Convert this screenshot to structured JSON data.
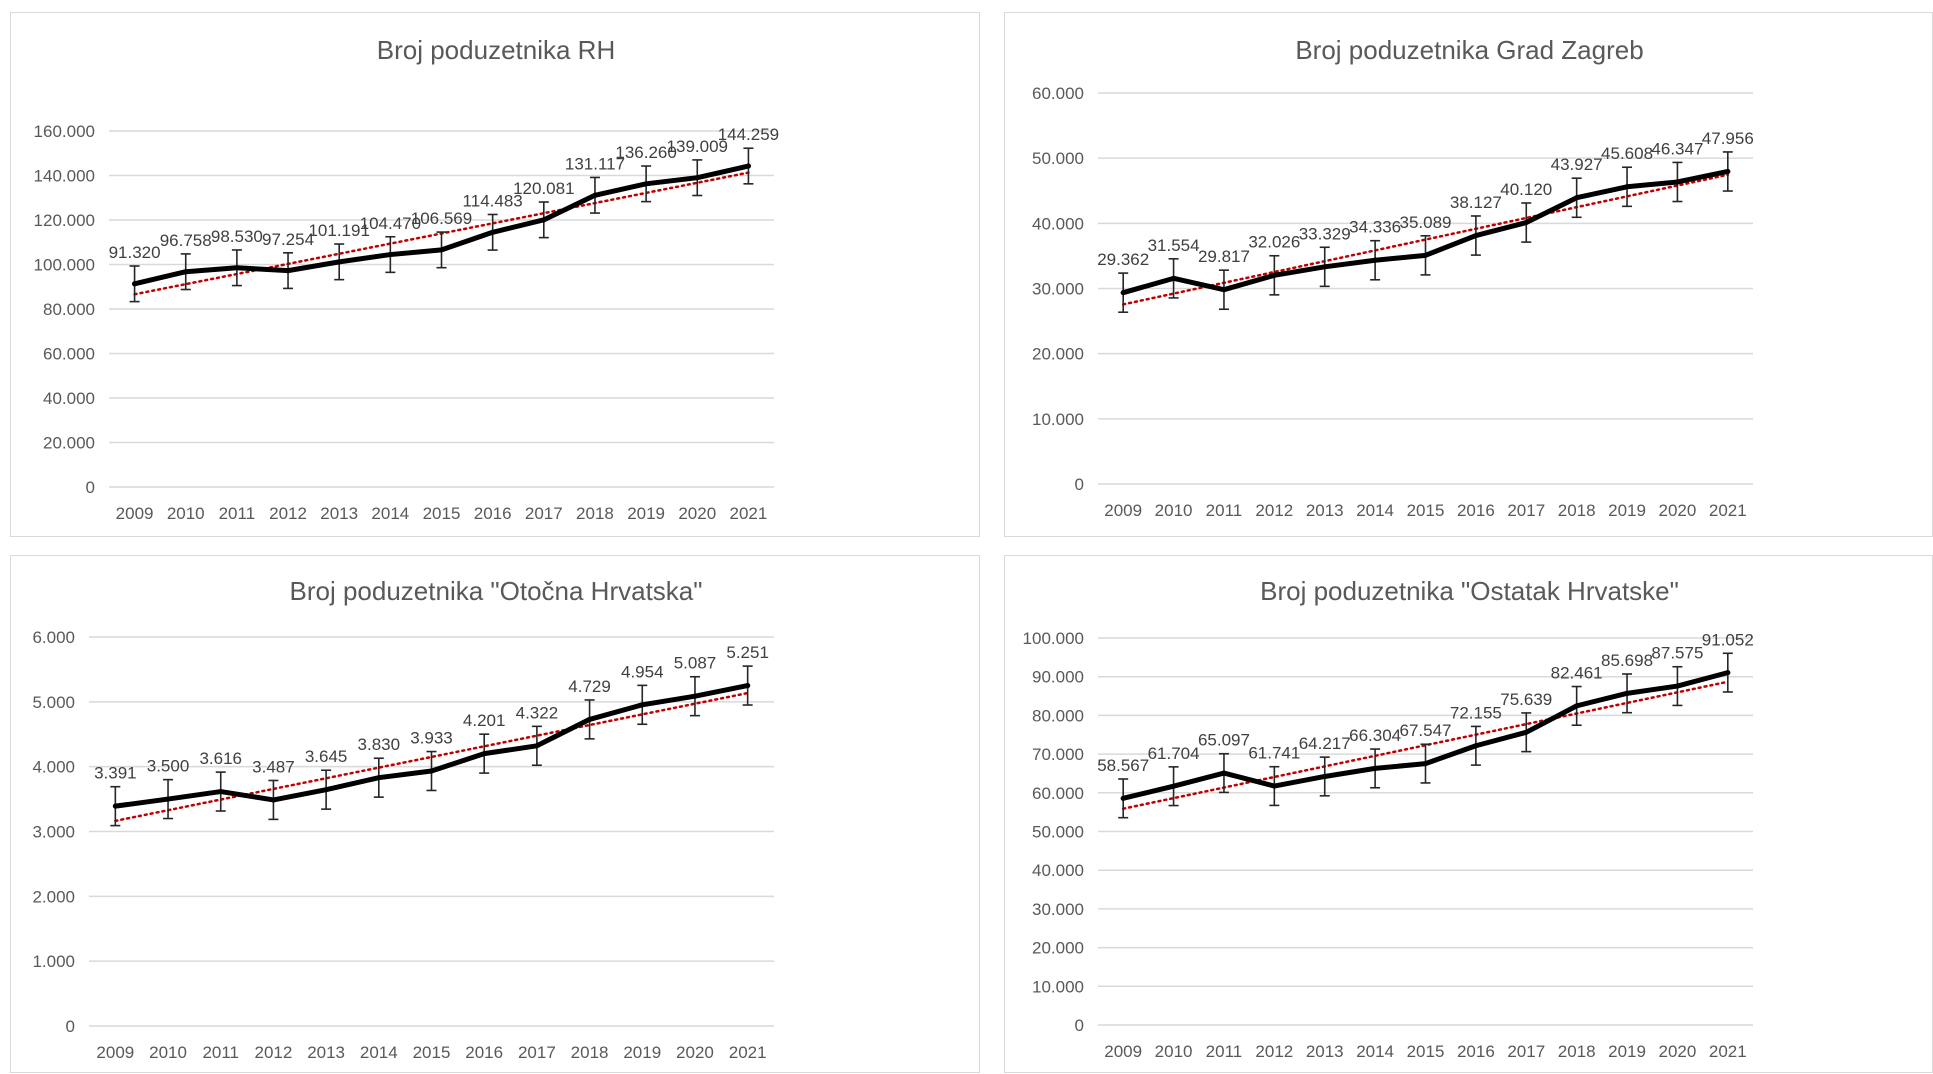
{
  "colors": {
    "series": "#000000",
    "trend": "#c00000",
    "grid": "#d9d9d9",
    "text": "#595959"
  },
  "chart_data": [
    {
      "type": "line",
      "title": "Broj poduzetnika RH",
      "categories": [
        "2009",
        "2010",
        "2011",
        "2012",
        "2013",
        "2014",
        "2015",
        "2016",
        "2017",
        "2018",
        "2019",
        "2020",
        "2021"
      ],
      "values": [
        91320,
        96758,
        98530,
        97254,
        101191,
        104470,
        106569,
        114483,
        120081,
        131117,
        136260,
        139009,
        144259
      ],
      "value_labels": [
        "91.320",
        "96.758",
        "98.530",
        "97.254",
        "101.191",
        "104.470",
        "106.569",
        "114.483",
        "120.081",
        "131.117",
        "136.260",
        "139.009",
        "144.259"
      ],
      "yticks": [
        "0",
        "20.000",
        "40.000",
        "60.000",
        "80.000",
        "100.000",
        "120.000",
        "140.000",
        "160.000"
      ],
      "ylim": [
        0,
        160000
      ],
      "error_bars": true,
      "trendline": "linear",
      "grid": true
    },
    {
      "type": "line",
      "title": "Broj poduzetnika Grad Zagreb",
      "categories": [
        "2009",
        "2010",
        "2011",
        "2012",
        "2013",
        "2014",
        "2015",
        "2016",
        "2017",
        "2018",
        "2019",
        "2020",
        "2021"
      ],
      "values": [
        29362,
        31554,
        29817,
        32026,
        33329,
        34336,
        35089,
        38127,
        40120,
        43927,
        45608,
        46347,
        47956
      ],
      "value_labels": [
        "29.362",
        "31.554",
        "29.817",
        "32.026",
        "33.329",
        "34.336",
        "35.089",
        "38.127",
        "40.120",
        "43.927",
        "45.608",
        "46.347",
        "47.956"
      ],
      "yticks": [
        "0",
        "10.000",
        "20.000",
        "30.000",
        "40.000",
        "50.000",
        "60.000"
      ],
      "ylim": [
        0,
        60000
      ],
      "error_bars": true,
      "trendline": "linear",
      "grid": true
    },
    {
      "type": "line",
      "title": "Broj poduzetnika \"Otočna Hrvatska\"",
      "categories": [
        "2009",
        "2010",
        "2011",
        "2012",
        "2013",
        "2014",
        "2015",
        "2016",
        "2017",
        "2018",
        "2019",
        "2020",
        "2021"
      ],
      "values": [
        3391,
        3500,
        3616,
        3487,
        3645,
        3830,
        3933,
        4201,
        4322,
        4729,
        4954,
        5087,
        5251
      ],
      "value_labels": [
        "3.391",
        "3.500",
        "3.616",
        "3.487",
        "3.645",
        "3.830",
        "3.933",
        "4.201",
        "4.322",
        "4.729",
        "4.954",
        "5.087",
        "5.251"
      ],
      "yticks": [
        "0",
        "1.000",
        "2.000",
        "3.000",
        "4.000",
        "5.000",
        "6.000"
      ],
      "ylim": [
        0,
        6000
      ],
      "error_bars": true,
      "trendline": "linear",
      "grid": true
    },
    {
      "type": "line",
      "title": "Broj poduzetnika \"Ostatak Hrvatske\"",
      "categories": [
        "2009",
        "2010",
        "2011",
        "2012",
        "2013",
        "2014",
        "2015",
        "2016",
        "2017",
        "2018",
        "2019",
        "2020",
        "2021"
      ],
      "values": [
        58567,
        61704,
        65097,
        61741,
        64217,
        66304,
        67547,
        72155,
        75639,
        82461,
        85698,
        87575,
        91052
      ],
      "value_labels": [
        "58.567",
        "61.704",
        "65.097",
        "61.741",
        "64.217",
        "66.304",
        "67.547",
        "72.155",
        "75.639",
        "82.461",
        "85.698",
        "87.575",
        "91.052"
      ],
      "yticks": [
        "0",
        "10.000",
        "20.000",
        "30.000",
        "40.000",
        "50.000",
        "60.000",
        "70.000",
        "80.000",
        "90.000",
        "100.000"
      ],
      "ylim": [
        0,
        100000
      ],
      "error_bars": true,
      "trendline": "linear",
      "grid": true
    }
  ]
}
